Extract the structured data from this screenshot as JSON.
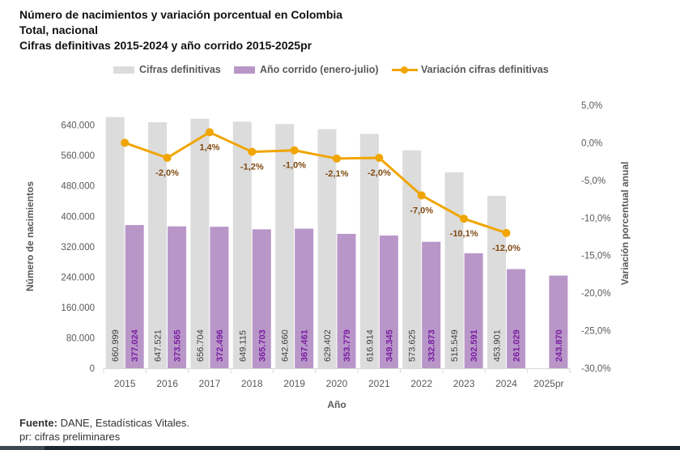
{
  "title": {
    "line1": "Número de nacimientos y variación porcentual en Colombia",
    "line2": "Total, nacional",
    "line3": "Cifras definitivas 2015-2024 y año corrido 2015-2025pr"
  },
  "footer": {
    "source_label": "Fuente:",
    "source_text": " DANE, Estadísticas Vitales.",
    "note": "pr: cifras preliminares"
  },
  "colors": {
    "definitivas": "#dcdcdc",
    "corrido": "#b996c8",
    "corrido_label": "#7a1fa2",
    "variacion": "#f0a500",
    "variacion_label": "#7f4a10",
    "axis_text": "#595959"
  },
  "chart_data": {
    "type": "bar",
    "title": "Número de nacimientos y variación porcentual en Colombia",
    "xlabel": "Año",
    "ylabel": "Número de nacimientos",
    "y2label": "Variación porcentual anual",
    "categories": [
      "2015",
      "2016",
      "2017",
      "2018",
      "2019",
      "2020",
      "2021",
      "2022",
      "2023",
      "2024",
      "2025pr"
    ],
    "ylim": [
      0,
      700000
    ],
    "yticks": [
      0,
      80000,
      160000,
      240000,
      320000,
      400000,
      480000,
      560000,
      640000
    ],
    "ytick_labels": [
      "0",
      "80.000",
      "160.000",
      "240.000",
      "320.000",
      "400.000",
      "480.000",
      "560.000",
      "640.000"
    ],
    "y2lim": [
      -30,
      5
    ],
    "y2ticks": [
      5,
      0,
      -5,
      -10,
      -15,
      -20,
      -25,
      -30
    ],
    "y2tick_labels": [
      "5,0%",
      "0,0%",
      "-5,0%",
      "-10,0%",
      "-15,0%",
      "-20,0%",
      "-25,0%",
      "-30,0%"
    ],
    "legend_position": "top",
    "grid": false,
    "series": [
      {
        "name": "Cifras definitivas",
        "type": "bar",
        "values": [
          660999,
          647521,
          656704,
          649115,
          642660,
          629402,
          616914,
          573625,
          515549,
          453901,
          null
        ],
        "labels": [
          "660.999",
          "647.521",
          "656.704",
          "649.115",
          "642.660",
          "629.402",
          "616.914",
          "573.625",
          "515.549",
          "453.901",
          ""
        ]
      },
      {
        "name": "Año corrido (enero-julio)",
        "type": "bar",
        "values": [
          377024,
          373565,
          372496,
          365703,
          367461,
          353779,
          349345,
          332873,
          302591,
          261029,
          243870
        ],
        "labels": [
          "377.024",
          "373.565",
          "372.496",
          "365.703",
          "367.461",
          "353.779",
          "349.345",
          "332.873",
          "302.591",
          "261.029",
          "243.870"
        ]
      },
      {
        "name": "Variación cifras definitivas",
        "type": "line",
        "axis": "secondary",
        "values": [
          0.0,
          -2.0,
          1.4,
          -1.2,
          -1.0,
          -2.1,
          -2.0,
          -7.0,
          -10.1,
          -12.0,
          null
        ],
        "labels": [
          "",
          "-2,0%",
          "1,4%",
          "-1,2%",
          "-1,0%",
          "-2,1%",
          "-2,0%",
          "-7,0%",
          "-10,1%",
          "-12,0%",
          ""
        ]
      }
    ]
  }
}
